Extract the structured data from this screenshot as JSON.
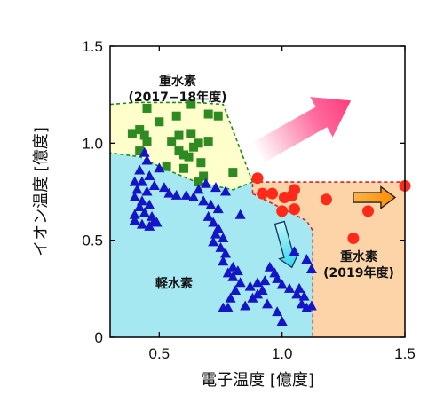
{
  "chart_data": {
    "type": "scatter",
    "xlabel": "電子温度 [億度]",
    "ylabel": "イオン温度 [億度]",
    "xlim": [
      0.3,
      1.5
    ],
    "ylim": [
      0,
      1.5
    ],
    "xticks": [
      "0.5",
      "1.0",
      "1.5"
    ],
    "yticks": [
      "0",
      "0.5",
      "1.0",
      "1.5"
    ],
    "grid": false,
    "colors": {
      "deuterium_2017_18": "#2e8b22",
      "hydrogen": "#1515c8",
      "deuterium_2019": "#ff2a1a",
      "yellow_region": "#ffffcc",
      "cyan_region": "#a6e8f2",
      "orange_region": "#fcd4a8"
    },
    "annotations": [
      {
        "id": "label_deut_old",
        "lines": [
          "重水素",
          "(2017−18年度)"
        ]
      },
      {
        "id": "label_hydrogen",
        "lines": [
          "軽水素"
        ]
      },
      {
        "id": "label_deut_new",
        "lines": [
          "重水素",
          "(2019年度)"
        ]
      }
    ],
    "regions": [
      {
        "id": "yellow",
        "color": "#ffffcc",
        "edge": "#228b22",
        "boundary": [
          [
            0.3,
            1.2
          ],
          [
            0.4,
            1.21
          ],
          [
            0.65,
            1.21
          ],
          [
            0.76,
            1.2
          ],
          [
            0.88,
            0.8
          ],
          [
            0.8,
            0.76
          ],
          [
            0.65,
            0.8
          ],
          [
            0.5,
            0.88
          ],
          [
            0.42,
            0.93
          ],
          [
            0.3,
            0.95
          ]
        ]
      },
      {
        "id": "cyan",
        "color": "#a6e8f2",
        "edge": null,
        "boundary": [
          [
            0.3,
            0.95
          ],
          [
            0.42,
            0.93
          ],
          [
            0.5,
            0.88
          ],
          [
            0.65,
            0.8
          ],
          [
            0.8,
            0.76
          ],
          [
            0.88,
            0.8
          ],
          [
            0.88,
            0.74
          ],
          [
            1.1,
            0.6
          ],
          [
            1.125,
            0.55
          ],
          [
            1.125,
            0
          ],
          [
            0.3,
            0
          ]
        ]
      },
      {
        "id": "orange",
        "color": "#fcd4a8",
        "edge": "#e02020",
        "boundary": [
          [
            0.88,
            0.8
          ],
          [
            1.5,
            0.8
          ],
          [
            1.5,
            0
          ],
          [
            1.125,
            0
          ],
          [
            1.125,
            0.55
          ],
          [
            1.1,
            0.6
          ],
          [
            0.88,
            0.74
          ]
        ]
      }
    ],
    "arrows": [
      {
        "id": "pink",
        "from": [
          0.9,
          0.95
        ],
        "to": [
          1.28,
          1.22
        ],
        "color": "#ff4d8a"
      },
      {
        "id": "cyan",
        "from": [
          0.99,
          0.59
        ],
        "to": [
          1.04,
          0.36
        ],
        "color": "#40e0ef"
      },
      {
        "id": "orange",
        "from": [
          1.29,
          0.72
        ],
        "to": [
          1.46,
          0.72
        ],
        "color": "#ff9900"
      }
    ],
    "series": [
      {
        "name": "重水素 (2017−18年度)",
        "marker": "square",
        "color": "#2e8b22",
        "points": [
          [
            0.45,
            1.18
          ],
          [
            0.63,
            1.2
          ],
          [
            0.74,
            1.14
          ],
          [
            0.7,
            1.15
          ],
          [
            0.57,
            1.14
          ],
          [
            0.5,
            1.11
          ],
          [
            0.42,
            1.07
          ],
          [
            0.39,
            1.05
          ],
          [
            0.44,
            1.04
          ],
          [
            0.45,
            1.01
          ],
          [
            0.58,
            1.04
          ],
          [
            0.63,
            1.05
          ],
          [
            0.55,
            1.01
          ],
          [
            0.66,
            1.0
          ],
          [
            0.7,
            1.01
          ],
          [
            0.64,
            0.98
          ],
          [
            0.58,
            0.96
          ],
          [
            0.6,
            0.94
          ],
          [
            0.42,
            0.96
          ],
          [
            0.62,
            0.93
          ],
          [
            0.67,
            0.9
          ],
          [
            0.53,
            0.88
          ],
          [
            0.6,
            0.87
          ],
          [
            0.8,
            0.85
          ],
          [
            0.68,
            0.83
          ],
          [
            0.66,
            0.8
          ]
        ]
      },
      {
        "name": "軽水素",
        "marker": "triangle",
        "color": "#1515c8",
        "points": [
          [
            0.44,
            0.95
          ],
          [
            0.45,
            0.91
          ],
          [
            0.5,
            0.87
          ],
          [
            0.42,
            0.86
          ],
          [
            0.46,
            0.83
          ],
          [
            0.43,
            0.8
          ],
          [
            0.4,
            0.8
          ],
          [
            0.48,
            0.78
          ],
          [
            0.52,
            0.77
          ],
          [
            0.41,
            0.76
          ],
          [
            0.45,
            0.75
          ],
          [
            0.54,
            0.74
          ],
          [
            0.57,
            0.73
          ],
          [
            0.4,
            0.72
          ],
          [
            0.43,
            0.7
          ],
          [
            0.46,
            0.68
          ],
          [
            0.61,
            0.73
          ],
          [
            0.66,
            0.76
          ],
          [
            0.69,
            0.79
          ],
          [
            0.73,
            0.77
          ],
          [
            0.77,
            0.75
          ],
          [
            0.64,
            0.72
          ],
          [
            0.68,
            0.7
          ],
          [
            0.71,
            0.68
          ],
          [
            0.74,
            0.66
          ],
          [
            0.42,
            0.67
          ],
          [
            0.44,
            0.64
          ],
          [
            0.4,
            0.63
          ],
          [
            0.47,
            0.62
          ],
          [
            0.49,
            0.59
          ],
          [
            0.4,
            0.6
          ],
          [
            0.43,
            0.58
          ],
          [
            0.46,
            0.57
          ],
          [
            0.48,
            0.6
          ],
          [
            0.7,
            0.62
          ],
          [
            0.72,
            0.59
          ],
          [
            0.74,
            0.56
          ],
          [
            0.83,
            0.63
          ],
          [
            0.73,
            0.53
          ],
          [
            0.76,
            0.51
          ],
          [
            0.72,
            0.49
          ],
          [
            0.75,
            0.46
          ],
          [
            0.77,
            0.43
          ],
          [
            0.76,
            0.39
          ],
          [
            0.8,
            0.36
          ],
          [
            0.78,
            0.33
          ],
          [
            0.82,
            0.34
          ],
          [
            0.8,
            0.31
          ],
          [
            0.83,
            0.28
          ],
          [
            0.81,
            0.24
          ],
          [
            0.79,
            0.2
          ],
          [
            0.78,
            0.15
          ],
          [
            0.76,
            0.15
          ],
          [
            0.85,
            0.16
          ],
          [
            0.88,
            0.2
          ],
          [
            0.9,
            0.22
          ],
          [
            0.92,
            0.24
          ],
          [
            0.87,
            0.26
          ],
          [
            0.9,
            0.28
          ],
          [
            0.93,
            0.29
          ],
          [
            0.97,
            0.33
          ],
          [
            0.95,
            0.36
          ],
          [
            0.98,
            0.3
          ],
          [
            1.0,
            0.27
          ],
          [
            1.03,
            0.25
          ],
          [
            1.06,
            0.22
          ],
          [
            1.07,
            0.25
          ],
          [
            1.09,
            0.21
          ],
          [
            1.1,
            0.15
          ],
          [
            1.12,
            0.16
          ],
          [
            1.1,
            0.4
          ],
          [
            1.05,
            0.44
          ],
          [
            1.12,
            0.35
          ],
          [
            1.08,
            0.17
          ],
          [
            0.94,
            0.17
          ],
          [
            0.98,
            0.13
          ],
          [
            1.0,
            0.08
          ]
        ]
      },
      {
        "name": "重水素 (2019年度)",
        "marker": "circle",
        "color": "#ff2a1a",
        "points": [
          [
            0.9,
            0.82
          ],
          [
            0.92,
            0.74
          ],
          [
            0.96,
            0.74
          ],
          [
            1.01,
            0.72
          ],
          [
            1.04,
            0.73
          ],
          [
            1.05,
            0.76
          ],
          [
            1.0,
            0.65
          ],
          [
            1.05,
            0.66
          ],
          [
            1.18,
            0.71
          ],
          [
            1.35,
            0.65
          ],
          [
            1.29,
            0.51
          ],
          [
            1.5,
            0.78
          ]
        ]
      }
    ]
  }
}
